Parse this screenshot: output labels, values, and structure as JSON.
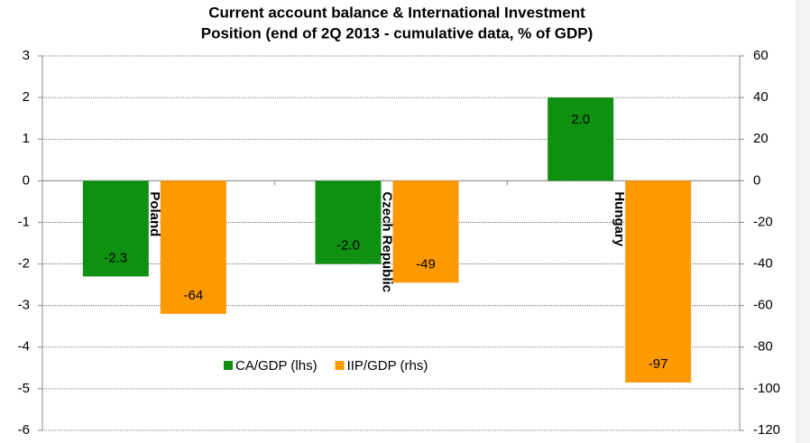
{
  "chart_data": {
    "type": "bar",
    "title": [
      "Current account balance & International Investment",
      "Position (end of 2Q 2013 - cumulative data, % of GDP)"
    ],
    "categories": [
      "Poland",
      "Czech Republic",
      "Hungary"
    ],
    "series": [
      {
        "name": "CA/GDP (lhs)",
        "color": "#109010",
        "values": [
          -2.3,
          -2.0,
          2.0
        ],
        "value_labels": [
          "-2.3",
          "-2.0",
          "2.0"
        ]
      },
      {
        "name": "IIP/GDP (rhs)",
        "color": "#ff9900",
        "values": [
          -64,
          -49,
          -97
        ],
        "axis": "y2"
      }
    ],
    "ylim": [
      -6,
      3
    ],
    "yticks": [
      3,
      2,
      1,
      0,
      -1,
      -2,
      -3,
      -4,
      -5,
      -6
    ],
    "y2lim": [
      -120,
      60
    ],
    "y2ticks": [
      60,
      40,
      20,
      0,
      -20,
      -40,
      -60,
      -80,
      -100,
      -120
    ],
    "grid": true
  }
}
